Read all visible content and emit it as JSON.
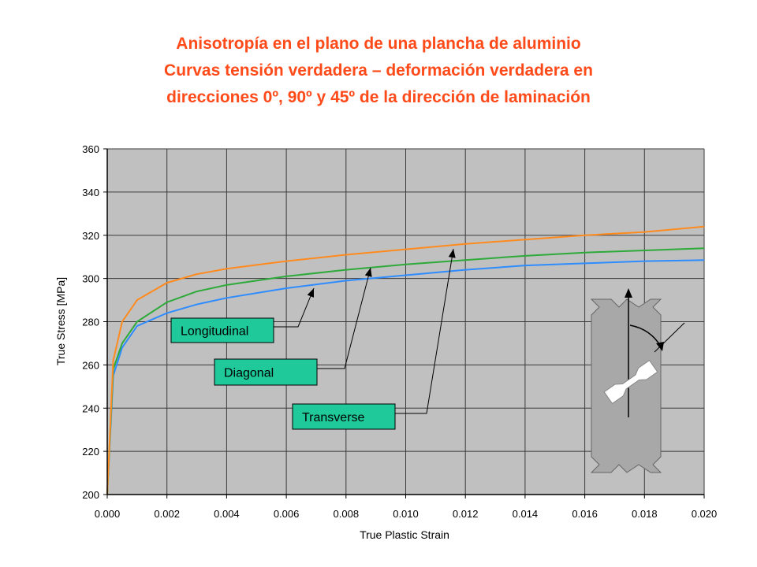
{
  "chart_data": {
    "type": "line",
    "title": [
      "Anisotropía en el plano de una plancha de aluminio",
      "Curvas tensión verdadera – deformación verdadera en",
      "direcciones 0º, 90º y 45º de la dirección de laminación"
    ],
    "x_label": "True Plastic Strain",
    "y_label": "True Stress [MPa]",
    "xlim": [
      0,
      0.02
    ],
    "ylim": [
      200,
      360
    ],
    "xticks": [
      {
        "value": 0,
        "label": "0.000"
      },
      {
        "value": 0.002,
        "label": "0.002"
      },
      {
        "value": 0.004,
        "label": "0.004"
      },
      {
        "value": 0.006,
        "label": "0.006"
      },
      {
        "value": 0.008,
        "label": "0.008"
      },
      {
        "value": 0.01,
        "label": "0.010"
      },
      {
        "value": 0.012,
        "label": "0.012"
      },
      {
        "value": 0.014,
        "label": "0.014"
      },
      {
        "value": 0.016,
        "label": "0.016"
      },
      {
        "value": 0.018,
        "label": "0.018"
      },
      {
        "value": 0.02,
        "label": "0.020"
      }
    ],
    "yticks": [
      200,
      220,
      240,
      260,
      280,
      300,
      320,
      340,
      360
    ],
    "grid": true,
    "x": [
      0,
      0.0002,
      0.0005,
      0.001,
      0.002,
      0.003,
      0.004,
      0.006,
      0.008,
      0.01,
      0.012,
      0.014,
      0.016,
      0.018,
      0.02
    ],
    "series": [
      {
        "name": "Longitudinal",
        "color": "#2e8cff",
        "values": [
          200,
          255,
          268,
          278,
          284,
          288,
          291,
          295.5,
          299,
          301.5,
          304,
          306,
          307,
          308,
          308.5
        ]
      },
      {
        "name": "Diagonal",
        "color": "#2eaa3a",
        "values": [
          200,
          258,
          270,
          280,
          289,
          294,
          297,
          301,
          304,
          306.5,
          308.5,
          310.5,
          312,
          313,
          314
        ]
      },
      {
        "name": "Transverse",
        "color": "#ff8a1e",
        "values": [
          200,
          262,
          280,
          290,
          298,
          302,
          304.5,
          308,
          311,
          313.5,
          316,
          318,
          320,
          321.5,
          324
        ]
      }
    ]
  }
}
